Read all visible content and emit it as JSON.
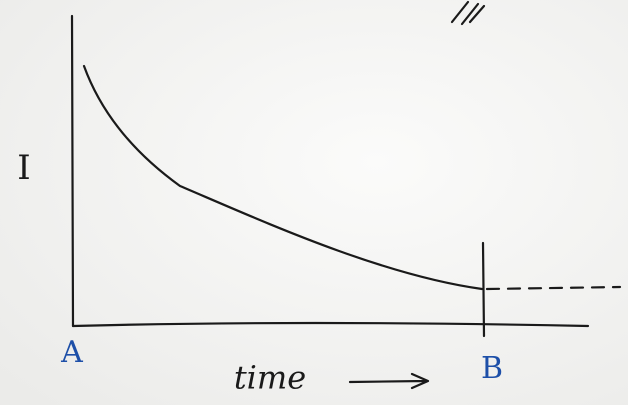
{
  "axes": {
    "y_label": "I",
    "x_label": "time"
  },
  "points": {
    "start": "A",
    "end": "B"
  }
}
